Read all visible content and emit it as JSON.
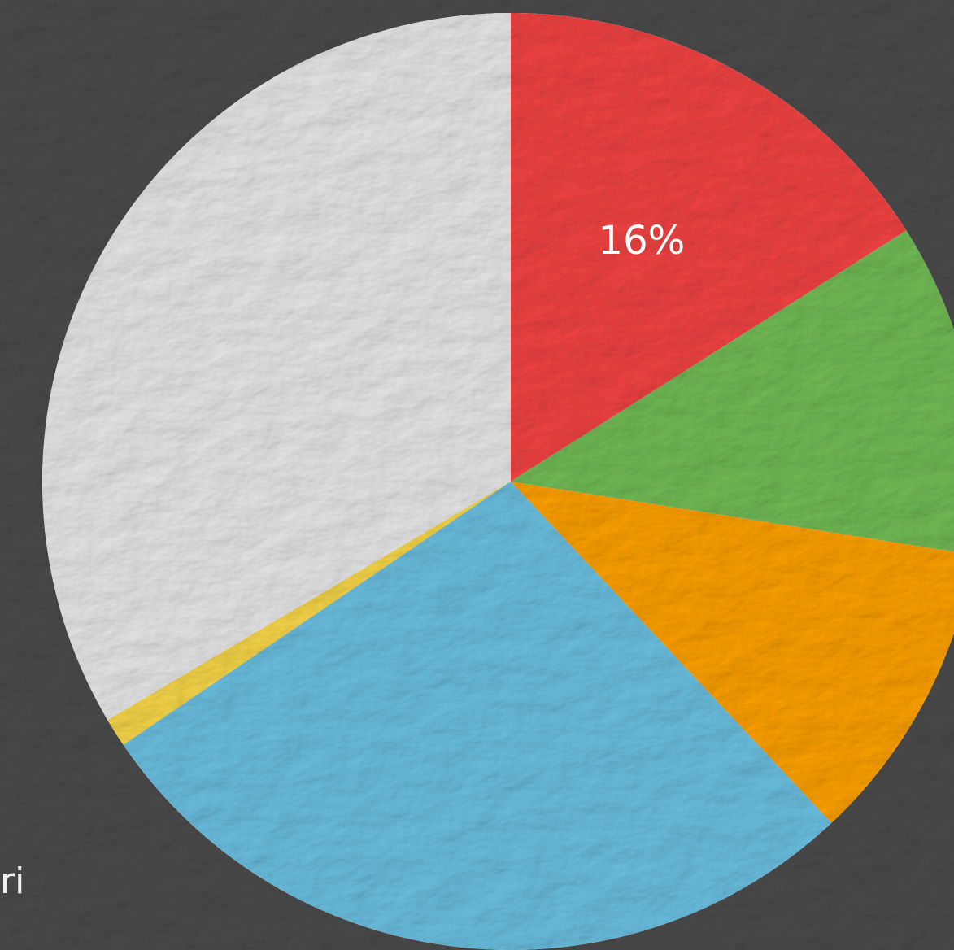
{
  "chart_data": {
    "type": "pie",
    "start_angle_deg": 0,
    "direction": "clockwise",
    "slices": [
      {
        "value": 16,
        "label": "16%",
        "color": "#f44444"
      },
      {
        "value": 11.5,
        "label": "",
        "color": "#73bd57"
      },
      {
        "value": 10.5,
        "label": "",
        "color": "#ffa200"
      },
      {
        "value": 27.5,
        "label": "",
        "color": "#6cc1e3"
      },
      {
        "value": 1,
        "label": "",
        "color": "#f9d84a"
      },
      {
        "value": 33.5,
        "label": "",
        "color": "#e9e9e9"
      }
    ]
  },
  "edge_text": "ri"
}
